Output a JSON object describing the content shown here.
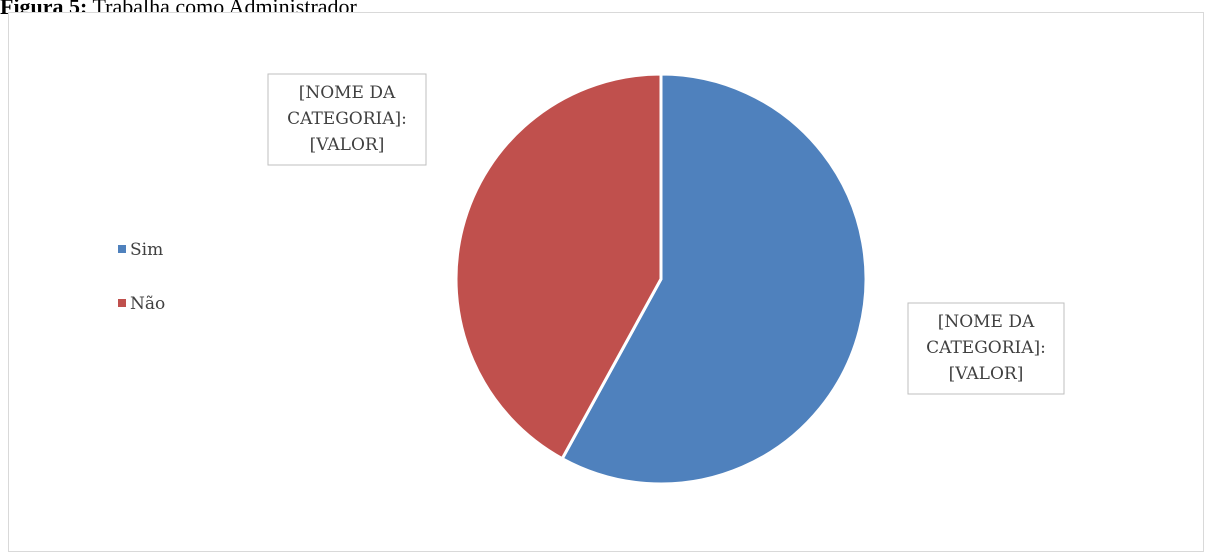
{
  "caption": {
    "bold": "Figura 5:",
    "text": "Trabalha como Administrador"
  },
  "chart_data": {
    "type": "pie",
    "title": "",
    "categories": [
      "Sim",
      "Não"
    ],
    "values": [
      58,
      42
    ],
    "colors": [
      "#4f81bd",
      "#c0504d"
    ],
    "legend_position": "left",
    "data_labels": [
      [
        "[NOME DA",
        "CATEGORIA]:",
        "[VALOR]"
      ],
      [
        "[NOME DA",
        "CATEGORIA]:",
        "[VALOR]"
      ]
    ]
  }
}
